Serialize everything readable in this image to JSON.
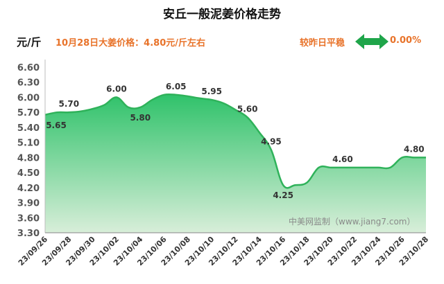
{
  "header": {
    "title": "安丘一般泥姜价格走势",
    "unit": "元/斤",
    "price_note": "10月28日大姜价格：4.80元/斤左右",
    "compare_text": "较昨日平稳",
    "compare_value": "0.00%",
    "compare_icon": "double-arrow-icon"
  },
  "watermark": "中美网监制（www.jiang7.com）",
  "colors": {
    "fill_top": "#2fc26a",
    "fill_bottom": "#d8eed9",
    "line": "#2fb25a",
    "arrow": "#1fa54a",
    "accent_text": "#e8732a"
  },
  "chart_data": {
    "type": "area",
    "title": "安丘一般泥姜价格走势",
    "ylabel": "元/斤",
    "ylim": [
      3.3,
      6.6
    ],
    "yticks": [
      "6.60",
      "6.30",
      "6.00",
      "5.70",
      "5.40",
      "5.10",
      "4.80",
      "4.50",
      "4.20",
      "3.90",
      "3.60",
      "3.30"
    ],
    "x": [
      "23/09/26",
      "23/09/27",
      "23/09/28",
      "23/09/29",
      "23/09/30",
      "23/10/01",
      "23/10/02",
      "23/10/03",
      "23/10/04",
      "23/10/05",
      "23/10/06",
      "23/10/07",
      "23/10/08",
      "23/10/09",
      "23/10/10",
      "23/10/11",
      "23/10/12",
      "23/10/13",
      "23/10/14",
      "23/10/15",
      "23/10/16",
      "23/10/17",
      "23/10/18",
      "23/10/19",
      "23/10/20",
      "23/10/21",
      "23/10/22",
      "23/10/23",
      "23/10/24",
      "23/10/25",
      "23/10/26",
      "23/10/27",
      "23/10/28"
    ],
    "xticks": [
      "23/09/26",
      "23/09/28",
      "23/09/30",
      "23/10/02",
      "23/10/04",
      "23/10/06",
      "23/10/08",
      "23/10/10",
      "23/10/12",
      "23/10/14",
      "23/10/16",
      "23/10/18",
      "23/10/20",
      "23/10/22",
      "23/10/24",
      "23/10/26",
      "23/10/28"
    ],
    "values": [
      5.65,
      5.7,
      5.7,
      5.72,
      5.77,
      5.85,
      6.0,
      5.8,
      5.8,
      5.95,
      6.05,
      6.05,
      6.02,
      5.98,
      5.95,
      5.88,
      5.75,
      5.6,
      5.3,
      4.95,
      4.25,
      4.25,
      4.3,
      4.6,
      4.6,
      4.6,
      4.6,
      4.6,
      4.6,
      4.6,
      4.8,
      4.8,
      4.8
    ],
    "data_labels": [
      {
        "x": "23/09/26",
        "text": "5.65",
        "pos": "below"
      },
      {
        "x": "23/09/28",
        "text": "5.70",
        "pos": "above"
      },
      {
        "x": "23/10/02",
        "text": "6.00",
        "pos": "above"
      },
      {
        "x": "23/10/04",
        "text": "5.80",
        "pos": "below"
      },
      {
        "x": "23/10/07",
        "text": "6.05",
        "pos": "above"
      },
      {
        "x": "23/10/10",
        "text": "5.95",
        "pos": "above"
      },
      {
        "x": "23/10/13",
        "text": "5.60",
        "pos": "above"
      },
      {
        "x": "23/10/15",
        "text": "4.95",
        "pos": "above"
      },
      {
        "x": "23/10/16",
        "text": "4.25",
        "pos": "below"
      },
      {
        "x": "23/10/21",
        "text": "4.60",
        "pos": "above"
      },
      {
        "x": "23/10/27",
        "text": "4.80",
        "pos": "above"
      }
    ],
    "grid": false,
    "legend": "none"
  }
}
